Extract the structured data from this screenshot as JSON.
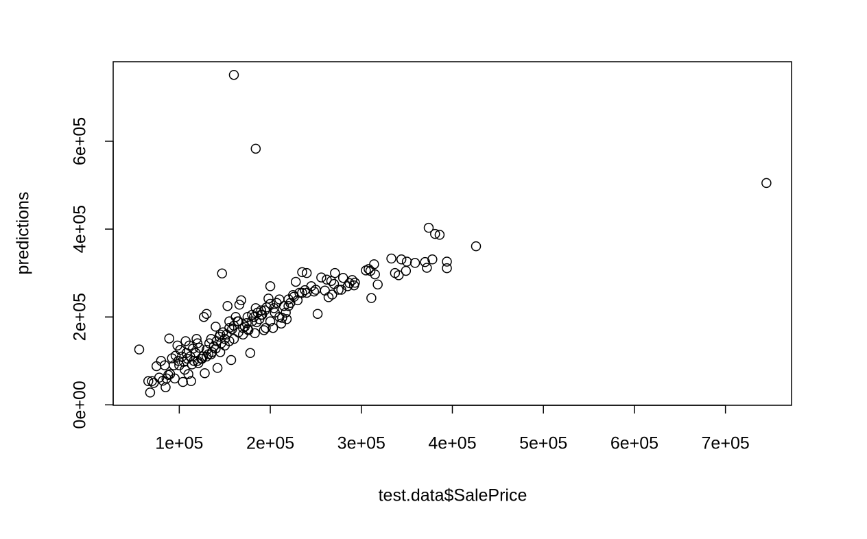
{
  "chart_data": {
    "type": "scatter",
    "x_label": "test.data$SalePrice",
    "y_label": "predictions",
    "color": "#000000",
    "xlim": [
      27400,
      772600
    ],
    "ylim": [
      -1000,
      781000
    ],
    "xticks": [
      {
        "value": 100000,
        "label": "1e+05"
      },
      {
        "value": 200000,
        "label": "2e+05"
      },
      {
        "value": 300000,
        "label": "3e+05"
      },
      {
        "value": 400000,
        "label": "4e+05"
      },
      {
        "value": 500000,
        "label": "5e+05"
      },
      {
        "value": 600000,
        "label": "6e+05"
      },
      {
        "value": 700000,
        "label": "7e+05"
      }
    ],
    "yticks": [
      {
        "value": 0,
        "label": "0e+00"
      },
      {
        "value": 200000,
        "label": "2e+05"
      },
      {
        "value": 400000,
        "label": "4e+05"
      },
      {
        "value": 600000,
        "label": "6e+05"
      }
    ],
    "x": [
      160000,
      184000,
      745000,
      56000,
      426000,
      374000,
      381000,
      386000,
      394000,
      394000,
      378000,
      372000,
      370000,
      333000,
      344000,
      350000,
      359000,
      337000,
      341000,
      349000,
      314000,
      308000,
      310000,
      315000,
      318000,
      311000,
      305000,
      293000,
      287000,
      280000,
      271000,
      290000,
      275000,
      268000,
      264000,
      260000,
      256000,
      262000,
      267000,
      250000,
      252000,
      245000,
      240000,
      235000,
      238000,
      232000,
      228000,
      226000,
      222000,
      220000,
      217000,
      213000,
      210000,
      207000,
      204000,
      200000,
      198000,
      196000,
      194000,
      191000,
      188000,
      186000,
      184000,
      182000,
      180000,
      178000,
      176000,
      174000,
      172000,
      170000,
      168000,
      166000,
      164000,
      162000,
      160000,
      158000,
      157000,
      155000,
      153000,
      152000,
      150000,
      148000,
      147000,
      146000,
      144000,
      142000,
      141000,
      140000,
      138000,
      136000,
      135000,
      133000,
      132000,
      130000,
      130000,
      128000,
      127000,
      126000,
      124000,
      122000,
      121000,
      120000,
      119000,
      118000,
      116000,
      115000,
      114000,
      113000,
      112000,
      111000,
      110000,
      109000,
      108000,
      107000,
      106000,
      105000,
      104000,
      103000,
      101000,
      100000,
      99000,
      98000,
      96000,
      95000,
      94000,
      92000,
      90000,
      89000,
      88000,
      86000,
      85000,
      84000,
      82000,
      80000,
      78000,
      75000,
      72000,
      70000,
      68000,
      66000,
      165000,
      170000,
      175000,
      180000,
      185000,
      190000,
      195000,
      200000,
      205000,
      210000,
      215000,
      220000,
      225000,
      230000,
      235000,
      240000,
      155000,
      150000,
      145000,
      140000,
      135000,
      130000,
      125000,
      120000,
      160000,
      165000,
      145000,
      155000,
      183000,
      193000,
      203000,
      212000,
      218000,
      248000,
      270000,
      278000,
      285000,
      292000,
      200000,
      175000,
      190000
    ],
    "values": [
      751000,
      583000,
      505000,
      126000,
      361000,
      403000,
      389000,
      387000,
      326000,
      311000,
      331000,
      312000,
      325000,
      333000,
      331000,
      326000,
      323000,
      300000,
      295000,
      305000,
      320000,
      309000,
      305000,
      297000,
      274000,
      243000,
      306000,
      278000,
      277000,
      289000,
      300000,
      284000,
      262000,
      251000,
      245000,
      260000,
      290000,
      285000,
      282000,
      262000,
      207000,
      270000,
      300000,
      302000,
      261000,
      255000,
      280000,
      246000,
      232000,
      225000,
      210000,
      198000,
      200000,
      232000,
      220000,
      270000,
      242000,
      222000,
      215000,
      205000,
      195000,
      210000,
      220000,
      200000,
      190000,
      118000,
      170000,
      186000,
      178000,
      175000,
      238000,
      228000,
      190000,
      200000,
      180000,
      172000,
      102000,
      190000,
      225000,
      160000,
      150000,
      165000,
      299000,
      140000,
      155000,
      84000,
      145000,
      178000,
      133000,
      120000,
      150000,
      140000,
      115000,
      125000,
      207000,
      72000,
      200000,
      110000,
      105000,
      130000,
      95000,
      140000,
      150000,
      118000,
      100000,
      128000,
      92000,
      54000,
      110000,
      135000,
      70000,
      105000,
      118000,
      145000,
      80000,
      98000,
      52000,
      110000,
      125000,
      90000,
      100000,
      135000,
      112000,
      60000,
      90000,
      106000,
      70000,
      151000,
      68000,
      60000,
      40000,
      90000,
      55000,
      100000,
      62000,
      88000,
      50000,
      54000,
      28000,
      54000,
      190000,
      160000,
      172000,
      205000,
      188000,
      215000,
      175000,
      190000,
      210000,
      240000,
      225000,
      240000,
      250000,
      238000,
      255000,
      255000,
      175000,
      135000,
      120000,
      128000,
      115000,
      110000,
      105000,
      100000,
      150000,
      165000,
      160000,
      145000,
      163000,
      170000,
      175000,
      185000,
      195000,
      258000,
      275000,
      262000,
      270000,
      272000,
      230000,
      200000,
      205000
    ]
  }
}
